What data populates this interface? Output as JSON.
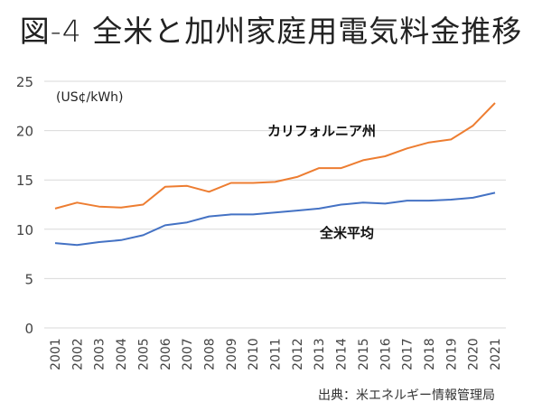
{
  "chart_data": {
    "type": "line",
    "title": "図-4 全米と加州家庭用電気料金推移",
    "unit_label": "(US¢/kWh)",
    "xlabel": "",
    "ylabel": "US¢/kWh",
    "ylim": [
      0,
      25
    ],
    "yticks": [
      0,
      5,
      10,
      15,
      20,
      25
    ],
    "grid": true,
    "categories": [
      "2001",
      "2002",
      "2003",
      "2004",
      "2005",
      "2006",
      "2007",
      "2008",
      "2009",
      "2010",
      "2011",
      "2012",
      "2013",
      "2014",
      "2015",
      "2016",
      "2017",
      "2018",
      "2019",
      "2020",
      "2021"
    ],
    "series": [
      {
        "name": "カリフォルニア州",
        "color": "#ED7D31",
        "values": [
          12.1,
          12.7,
          12.3,
          12.2,
          12.5,
          14.3,
          14.4,
          13.8,
          14.7,
          14.7,
          14.8,
          15.3,
          16.2,
          16.2,
          17.0,
          17.4,
          18.2,
          18.8,
          19.1,
          20.5,
          22.8
        ]
      },
      {
        "name": "全米平均",
        "color": "#4472C4",
        "values": [
          8.6,
          8.4,
          8.7,
          8.9,
          9.4,
          10.4,
          10.7,
          11.3,
          11.5,
          11.5,
          11.7,
          11.9,
          12.1,
          12.5,
          12.7,
          12.6,
          12.9,
          12.9,
          13.0,
          13.2,
          13.7
        ]
      }
    ],
    "annotations": [
      {
        "text": "カリフォルニア州",
        "series": "カリフォルニア州"
      },
      {
        "text": "全米平均",
        "series": "全米平均"
      }
    ],
    "source": "出典：米エネルギー情報管理局"
  }
}
